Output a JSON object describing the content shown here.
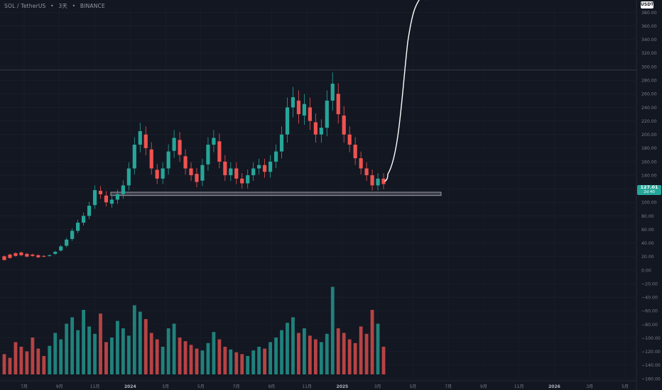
{
  "header": {
    "pair": "SOL / TetherUS",
    "interval": "3天",
    "exchange": "BINANCE",
    "separator": "•"
  },
  "currency_badge": "USDT",
  "last_price": {
    "value": "127.01",
    "countdown": "2d 40"
  },
  "colors": {
    "background": "#131722",
    "up": "#26a69a",
    "down": "#ef5350",
    "grid": "#1e222d",
    "axis_text": "#787b86",
    "annotation": "#ffffff"
  },
  "chart_data": {
    "type": "candlestick",
    "x_ticks": [
      "7月",
      "9月",
      "11月",
      "2024",
      "3月",
      "5月",
      "7月",
      "9月",
      "11月",
      "2025",
      "3月",
      "5月",
      "7月",
      "9月",
      "11月",
      "2026",
      "3月",
      "5月"
    ],
    "x_tick_bold": [
      "2024",
      "2025",
      "2026"
    ],
    "y_ticks": [
      "380.00",
      "360.00",
      "340.00",
      "320.00",
      "300.00",
      "280.00",
      "260.00",
      "240.00",
      "220.00",
      "200.00",
      "180.00",
      "160.00",
      "140.00",
      "120.00",
      "100.00",
      "80.00",
      "60.00",
      "40.00",
      "20.00",
      "0.00",
      "−20.00",
      "−40.00",
      "−60.00",
      "−80.00",
      "−100.00",
      "−120.00",
      "−140.00",
      "−160.00"
    ],
    "y_tick_values": [
      380,
      360,
      340,
      320,
      300,
      280,
      260,
      240,
      220,
      200,
      180,
      160,
      140,
      120,
      100,
      80,
      60,
      40,
      20,
      0,
      -20,
      -40,
      -60,
      -80,
      -100,
      -120,
      -140,
      -160
    ],
    "series": [
      {
        "name": "price",
        "points": [
          [
            20.5,
            15
          ],
          [
            23,
            18
          ],
          [
            25,
            21
          ],
          [
            26,
            22
          ],
          [
            24,
            20
          ],
          [
            23,
            21
          ],
          [
            22,
            19
          ],
          [
            21,
            20
          ],
          [
            21,
            22
          ],
          [
            24,
            27
          ],
          [
            29,
            35
          ],
          [
            36,
            45
          ],
          [
            46,
            58
          ],
          [
            58,
            70
          ],
          [
            70,
            80
          ],
          [
            80,
            95
          ],
          [
            96,
            118
          ],
          [
            117,
            112
          ],
          [
            110,
            100
          ],
          [
            98,
            104
          ],
          [
            104,
            112
          ],
          [
            112,
            125
          ],
          [
            125,
            150
          ],
          [
            150,
            185
          ],
          [
            185,
            205
          ],
          [
            200,
            180
          ],
          [
            178,
            150
          ],
          [
            148,
            135
          ],
          [
            135,
            150
          ],
          [
            150,
            175
          ],
          [
            176,
            195
          ],
          [
            192,
            170
          ],
          [
            168,
            150
          ],
          [
            150,
            140
          ],
          [
            142,
            130
          ],
          [
            132,
            155
          ],
          [
            156,
            185
          ],
          [
            185,
            195
          ],
          [
            190,
            160
          ],
          [
            160,
            140
          ],
          [
            140,
            150
          ],
          [
            150,
            135
          ],
          [
            135,
            128
          ],
          [
            128,
            140
          ],
          [
            140,
            150
          ],
          [
            150,
            155
          ],
          [
            155,
            145
          ],
          [
            145,
            160
          ],
          [
            160,
            175
          ],
          [
            175,
            200
          ],
          [
            200,
            240
          ],
          [
            240,
            255
          ],
          [
            250,
            230
          ],
          [
            228,
            245
          ],
          [
            240,
            220
          ],
          [
            218,
            200
          ],
          [
            200,
            210
          ],
          [
            210,
            250
          ],
          [
            250,
            275
          ],
          [
            260,
            230
          ],
          [
            228,
            200
          ],
          [
            200,
            185
          ],
          [
            185,
            165
          ],
          [
            165,
            150
          ],
          [
            150,
            140
          ],
          [
            140,
            125
          ],
          [
            125,
            135
          ],
          [
            135,
            127.01
          ]
        ]
      },
      {
        "name": "volume_scale",
        "values": [
          0.22,
          0.18,
          0.35,
          0.3,
          0.25,
          0.4,
          0.28,
          0.2,
          0.31,
          0.45,
          0.38,
          0.55,
          0.62,
          0.48,
          0.7,
          0.52,
          0.44,
          0.66,
          0.35,
          0.4,
          0.58,
          0.5,
          0.42,
          0.75,
          0.68,
          0.6,
          0.45,
          0.38,
          0.3,
          0.5,
          0.55,
          0.4,
          0.36,
          0.32,
          0.28,
          0.26,
          0.34,
          0.46,
          0.38,
          0.3,
          0.27,
          0.24,
          0.22,
          0.2,
          0.26,
          0.3,
          0.28,
          0.35,
          0.4,
          0.48,
          0.56,
          0.62,
          0.45,
          0.5,
          0.42,
          0.38,
          0.35,
          0.44,
          0.95,
          0.5,
          0.45,
          0.38,
          0.34,
          0.52,
          0.44,
          0.7,
          0.55,
          0.3
        ]
      }
    ],
    "support_zone": [
      110,
      115
    ],
    "resistance_line": 295,
    "annotation": "projection-arrow",
    "ylim": [
      -160,
      390
    ],
    "grid": true,
    "volume_panel": true
  }
}
